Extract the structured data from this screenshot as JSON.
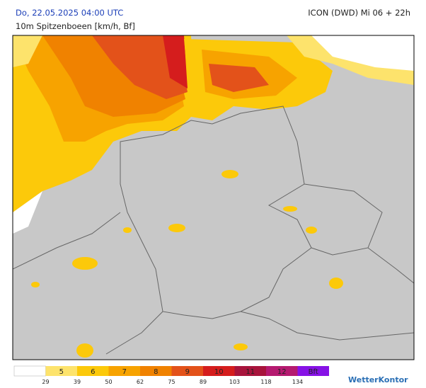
{
  "header": {
    "datetime": "Do, 22.05.2025 04:00 UTC",
    "model": "ICON (DWD) Mi 06 + 22h",
    "subtitle": "10m Spitzenboeen [km/h, Bf]"
  },
  "legend": {
    "classes": [
      {
        "label": "5",
        "color": "#fde36c"
      },
      {
        "label": "6",
        "color": "#fcc90a"
      },
      {
        "label": "7",
        "color": "#f7a300"
      },
      {
        "label": "8",
        "color": "#f08200"
      },
      {
        "label": "9",
        "color": "#e3521a"
      },
      {
        "label": "10",
        "color": "#d51d1d"
      },
      {
        "label": "11",
        "color": "#a8143c"
      },
      {
        "label": "12",
        "color": "#b51a70"
      },
      {
        "label": "Bft",
        "color": "#8612e6"
      }
    ],
    "thresholds": [
      29,
      39,
      50,
      62,
      75,
      89,
      103,
      118,
      134
    ]
  },
  "brand": "WetterKontor"
}
